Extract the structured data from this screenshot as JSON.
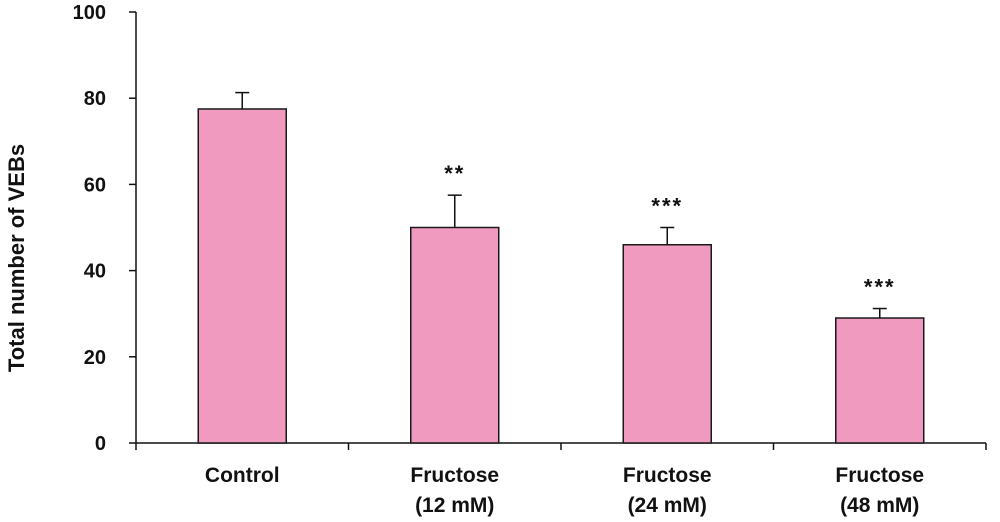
{
  "chart_data": {
    "type": "bar",
    "title": "",
    "xlabel": "",
    "ylabel": "Total number of VEBs",
    "ylim": [
      0,
      100
    ],
    "yticks": [
      0,
      20,
      40,
      60,
      80,
      100
    ],
    "grid": false,
    "categories": [
      [
        "Control"
      ],
      [
        "Fructose",
        "(12 mM)"
      ],
      [
        "Fructose",
        "(24 mM)"
      ],
      [
        "Fructose",
        "(48 mM)"
      ]
    ],
    "values": [
      77.5,
      50,
      46,
      29
    ],
    "error": [
      3.8,
      7.5,
      4,
      2.2
    ],
    "significance": [
      "",
      "**",
      "***",
      "***"
    ],
    "colors": {
      "bar_fill": "#f19ac0",
      "bar_stroke": "#1a1a1a",
      "axis": "#111111"
    }
  }
}
